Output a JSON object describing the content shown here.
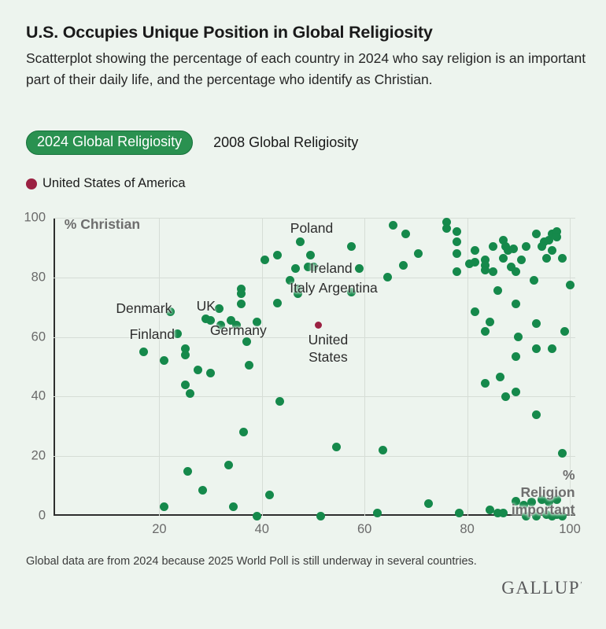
{
  "header": {
    "title": "U.S. Occupies Unique Position in Global Religiosity",
    "subtitle": "Scatterplot showing the percentage of each country in 2024 who say religion is an important part of their daily life, and the percentage who identify as Christian."
  },
  "tabs": [
    {
      "label": "2024 Global Religiosity",
      "selected": true
    },
    {
      "label": "2008 Global Religiosity",
      "selected": false
    }
  ],
  "legend": {
    "label": "United States of America",
    "color": "#9b2142"
  },
  "colors": {
    "background": "#edf4ee",
    "country_dot": "#15894b",
    "us_dot": "#9b2142",
    "tab_pill_bg": "#2a9150",
    "grid": "#d6ddd6",
    "axis": "#2e2e2e"
  },
  "chart_data": {
    "type": "scatter",
    "title": "2024 Global Religiosity",
    "xlabel": "% Religion important",
    "ylabel": "% Christian",
    "xlim": [
      0,
      100
    ],
    "ylim": [
      0,
      100
    ],
    "x_ticks": [
      20,
      40,
      60,
      80,
      100
    ],
    "y_ticks": [
      0,
      20,
      40,
      60,
      80,
      100
    ],
    "grid": true,
    "legend_position": "top-left",
    "series": [
      {
        "name": "Countries",
        "color": "#15894b",
        "size": 11,
        "points": [
          [
            17,
            55
          ],
          [
            21,
            52
          ],
          [
            22.2,
            68.6
          ],
          [
            23.5,
            61
          ],
          [
            25,
            56
          ],
          [
            25,
            54
          ],
          [
            25,
            44
          ],
          [
            26,
            41
          ],
          [
            27.5,
            49
          ],
          [
            30,
            48
          ],
          [
            29,
            66
          ],
          [
            30,
            65.5
          ],
          [
            31.7,
            69.5
          ],
          [
            32,
            64
          ],
          [
            34,
            65.5
          ],
          [
            35,
            64
          ],
          [
            39,
            65
          ],
          [
            36,
            76
          ],
          [
            36,
            74.5
          ],
          [
            36,
            71
          ],
          [
            37,
            58.5
          ],
          [
            37.5,
            50.5
          ],
          [
            40.5,
            86
          ],
          [
            43,
            87.5
          ],
          [
            43,
            71.5
          ],
          [
            45.5,
            79
          ],
          [
            46.5,
            83
          ],
          [
            49,
            83.5
          ],
          [
            47.5,
            92
          ],
          [
            47,
            76
          ],
          [
            47,
            74.5
          ],
          [
            49.5,
            87.5
          ],
          [
            50,
            83.5
          ],
          [
            43.5,
            38.5
          ],
          [
            36.5,
            28
          ],
          [
            33.5,
            17
          ],
          [
            25.5,
            15
          ],
          [
            28.5,
            8.5
          ],
          [
            21,
            3
          ],
          [
            34.5,
            3
          ],
          [
            39,
            0
          ],
          [
            41.5,
            7
          ],
          [
            54.5,
            23
          ],
          [
            51.5,
            0
          ],
          [
            57.5,
            90.5
          ],
          [
            57.5,
            75
          ],
          [
            59,
            83
          ],
          [
            63.5,
            22
          ],
          [
            62.5,
            1
          ],
          [
            64.5,
            80
          ],
          [
            65.5,
            97.5
          ],
          [
            68,
            94.5
          ],
          [
            70.5,
            88
          ],
          [
            67.5,
            84
          ],
          [
            72.5,
            4
          ],
          [
            76,
            98.5
          ],
          [
            76,
            96.5
          ],
          [
            78,
            95.5
          ],
          [
            78,
            92
          ],
          [
            78,
            88
          ],
          [
            78,
            82
          ],
          [
            78.5,
            1
          ],
          [
            80.5,
            84.5
          ],
          [
            81.5,
            85
          ],
          [
            81.5,
            89
          ],
          [
            81.5,
            68.5
          ],
          [
            83.5,
            86
          ],
          [
            83.5,
            84
          ],
          [
            83.5,
            82.5
          ],
          [
            85,
            82
          ],
          [
            85,
            90.5
          ],
          [
            84.5,
            65
          ],
          [
            83.5,
            62
          ],
          [
            86,
            75.5
          ],
          [
            87,
            92.5
          ],
          [
            87.5,
            90.5
          ],
          [
            88,
            89
          ],
          [
            89,
            89.5
          ],
          [
            87,
            86.5
          ],
          [
            88.5,
            83.5
          ],
          [
            89.5,
            82
          ],
          [
            90.5,
            86
          ],
          [
            91.5,
            90.5
          ],
          [
            89.5,
            71
          ],
          [
            90,
            60
          ],
          [
            93,
            79
          ],
          [
            93.5,
            94.5
          ],
          [
            95,
            92
          ],
          [
            94.5,
            90.5
          ],
          [
            96,
            92.5
          ],
          [
            96.5,
            94.5
          ],
          [
            97.5,
            95.5
          ],
          [
            97.5,
            93.5
          ],
          [
            96.5,
            89
          ],
          [
            95.5,
            86.5
          ],
          [
            98.5,
            86.5
          ],
          [
            93.5,
            64.5
          ],
          [
            99,
            62
          ],
          [
            93.5,
            56
          ],
          [
            96.5,
            56
          ],
          [
            89.5,
            53.5
          ],
          [
            86.5,
            46.5
          ],
          [
            83.5,
            44.5
          ],
          [
            87.5,
            40
          ],
          [
            89.5,
            41.5
          ],
          [
            93.5,
            34
          ],
          [
            98.5,
            21
          ],
          [
            84.5,
            2
          ],
          [
            86,
            1
          ],
          [
            87,
            1
          ],
          [
            89.5,
            5
          ],
          [
            91,
            3.5
          ],
          [
            92.5,
            4.5
          ],
          [
            94.5,
            5.5
          ],
          [
            96,
            4.5
          ],
          [
            97.5,
            5.5
          ],
          [
            91.5,
            0
          ],
          [
            93.5,
            0
          ],
          [
            95.5,
            0.5
          ],
          [
            96.5,
            0
          ],
          [
            97.5,
            0.5
          ],
          [
            98.5,
            0
          ],
          [
            100,
            77.5
          ]
        ]
      },
      {
        "name": "United States of America",
        "color": "#9b2142",
        "size": 9,
        "points": [
          [
            51,
            64
          ]
        ]
      }
    ],
    "annotations": [
      {
        "text": "% Christian",
        "x": 1.5,
        "y": 98,
        "align": "left",
        "bold": true,
        "muted": true
      },
      {
        "text": "% Religion\nimportant",
        "x": 101,
        "y": 8,
        "align": "right",
        "bold": true,
        "muted": true
      },
      {
        "text": "Poland",
        "x": 49.7,
        "y": 96.6,
        "align": "center"
      },
      {
        "text": "Ireland",
        "x": 53.5,
        "y": 83.2,
        "align": "center"
      },
      {
        "text": "Italy",
        "x": 47.9,
        "y": 76.4,
        "align": "center"
      },
      {
        "text": "Argentina",
        "x": 56.8,
        "y": 76.6,
        "align": "center"
      },
      {
        "text": "Denmark",
        "x": 17,
        "y": 69.7,
        "align": "center"
      },
      {
        "text": "UK",
        "x": 29.1,
        "y": 70.4,
        "align": "center"
      },
      {
        "text": "Finland",
        "x": 18.6,
        "y": 60.9,
        "align": "center"
      },
      {
        "text": "Germany",
        "x": 35.4,
        "y": 62.3,
        "align": "center"
      },
      {
        "text": "United\nStates",
        "x": 52.9,
        "y": 56.2,
        "align": "center"
      }
    ]
  },
  "footer": {
    "note": "Global data are from 2024 because 2025 World Poll is still underway in several countries.",
    "brand": "GALLUP",
    "brand_mark": "’"
  }
}
